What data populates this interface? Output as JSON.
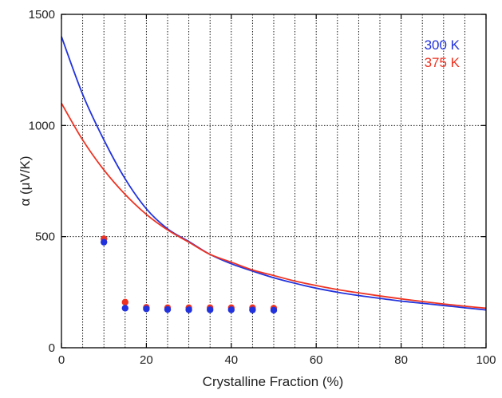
{
  "chart_data": {
    "type": "scatter",
    "title": "",
    "xlabel": "Crystalline Fraction (%)",
    "ylabel": "α (μV/K)",
    "xlim": [
      0,
      100
    ],
    "ylim": [
      0,
      1500
    ],
    "xticks": [
      0,
      20,
      40,
      60,
      80,
      100
    ],
    "yticks": [
      0,
      500,
      1000,
      1500
    ],
    "x_tick_labels": [
      "0",
      "20",
      "40",
      "60",
      "80",
      "100"
    ],
    "y_tick_labels": [
      "0",
      "500",
      "1000",
      "1500"
    ],
    "x_gridlines": [
      5,
      10,
      15,
      20,
      25,
      30,
      35,
      40,
      45,
      50,
      55,
      60,
      65,
      70,
      75,
      80,
      85,
      90,
      95
    ],
    "y_gridlines": [
      500,
      1000
    ],
    "grid": true,
    "legend_position": "top-right",
    "series": [
      {
        "name": "300 K",
        "color": "#2233dd",
        "curve_x": [
          0,
          5,
          10,
          15,
          20,
          25,
          30,
          35,
          40,
          45,
          50,
          55,
          60,
          65,
          70,
          75,
          80,
          85,
          90,
          95,
          100
        ],
        "curve_y": [
          1400,
          1140,
          935,
          760,
          625,
          535,
          478,
          420,
          378,
          345,
          315,
          290,
          268,
          250,
          235,
          222,
          210,
          200,
          190,
          180,
          170
        ],
        "points_x": [
          10,
          15,
          20,
          25,
          30,
          35,
          40,
          45,
          50
        ],
        "points_y": [
          475,
          178,
          175,
          172,
          171,
          171,
          171,
          170,
          169
        ]
      },
      {
        "name": "375 K",
        "color": "#ee3322",
        "curve_x": [
          0,
          5,
          10,
          15,
          20,
          25,
          30,
          35,
          40,
          45,
          50,
          55,
          60,
          65,
          70,
          75,
          80,
          85,
          90,
          95,
          100
        ],
        "curve_y": [
          1100,
          935,
          800,
          690,
          600,
          530,
          475,
          420,
          385,
          350,
          325,
          300,
          280,
          262,
          247,
          233,
          220,
          208,
          197,
          187,
          178
        ],
        "points_x": [
          10,
          15,
          20,
          25,
          30,
          35,
          40,
          45,
          50
        ],
        "points_y": [
          490,
          205,
          182,
          180,
          180,
          180,
          180,
          180,
          178
        ]
      }
    ]
  }
}
